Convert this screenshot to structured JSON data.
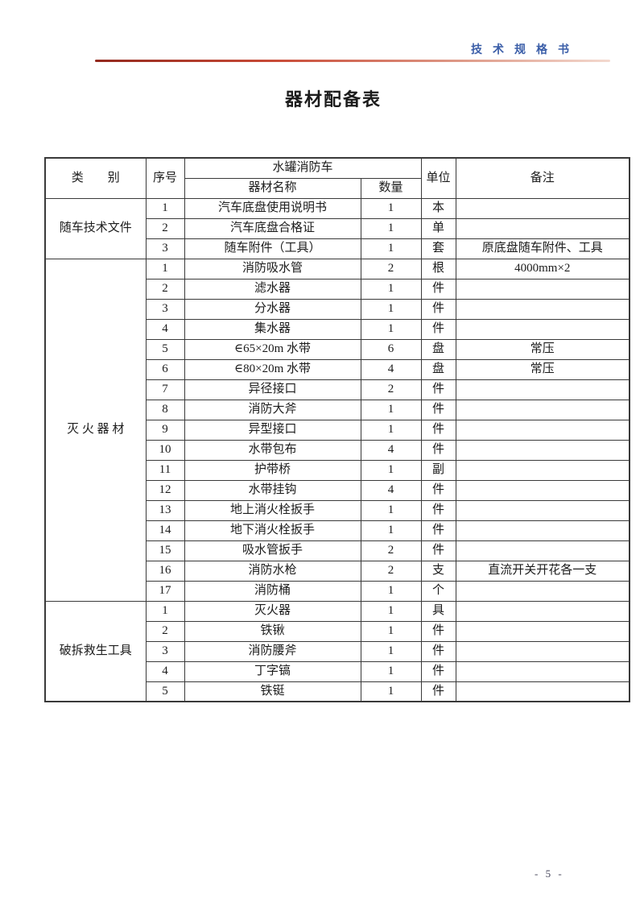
{
  "page": {
    "doc_type_label": "技术规格书",
    "title": "器材配备表",
    "page_number": "- 5 -"
  },
  "colors": {
    "doc_type_blue": "#3b5ea8",
    "rule_gradient_start": "#93291e",
    "rule_gradient_end": "#f3d9cf",
    "table_border": "#3a3a3a"
  },
  "table": {
    "headers": {
      "category": "类　　别",
      "seq": "序号",
      "vehicle": "水罐消防车",
      "name": "器材名称",
      "qty": "数量",
      "unit": "单位",
      "remark": "备注"
    },
    "groups": [
      {
        "category": "随车技术文件",
        "rows": [
          {
            "seq": "1",
            "name": "汽车底盘使用说明书",
            "qty": "1",
            "unit": "本",
            "remark": ""
          },
          {
            "seq": "2",
            "name": "汽车底盘合格证",
            "qty": "1",
            "unit": "单",
            "remark": ""
          },
          {
            "seq": "3",
            "name": "随车附件（工具）",
            "qty": "1",
            "unit": "套",
            "remark": "原底盘随车附件、工具"
          }
        ]
      },
      {
        "category": "灭 火 器 材",
        "rows": [
          {
            "seq": "1",
            "name": "消防吸水管",
            "qty": "2",
            "unit": "根",
            "remark": "4000mm×2"
          },
          {
            "seq": "2",
            "name": "滤水器",
            "qty": "1",
            "unit": "件",
            "remark": ""
          },
          {
            "seq": "3",
            "name": "分水器",
            "qty": "1",
            "unit": "件",
            "remark": ""
          },
          {
            "seq": "4",
            "name": "集水器",
            "qty": "1",
            "unit": "件",
            "remark": ""
          },
          {
            "seq": "5",
            "name": "∈65×20m 水带",
            "qty": "6",
            "unit": "盘",
            "remark": "常压"
          },
          {
            "seq": "6",
            "name": "∈80×20m 水带",
            "qty": "4",
            "unit": "盘",
            "remark": "常压"
          },
          {
            "seq": "7",
            "name": "异径接口",
            "qty": "2",
            "unit": "件",
            "remark": ""
          },
          {
            "seq": "8",
            "name": "消防大斧",
            "qty": "1",
            "unit": "件",
            "remark": ""
          },
          {
            "seq": "9",
            "name": "异型接口",
            "qty": "1",
            "unit": "件",
            "remark": ""
          },
          {
            "seq": "10",
            "name": "水带包布",
            "qty": "4",
            "unit": "件",
            "remark": ""
          },
          {
            "seq": "11",
            "name": "护带桥",
            "qty": "1",
            "unit": "副",
            "remark": ""
          },
          {
            "seq": "12",
            "name": "水带挂钩",
            "qty": "4",
            "unit": "件",
            "remark": ""
          },
          {
            "seq": "13",
            "name": "地上消火栓扳手",
            "qty": "1",
            "unit": "件",
            "remark": ""
          },
          {
            "seq": "14",
            "name": "地下消火栓扳手",
            "qty": "1",
            "unit": "件",
            "remark": ""
          },
          {
            "seq": "15",
            "name": "吸水管扳手",
            "qty": "2",
            "unit": "件",
            "remark": ""
          },
          {
            "seq": "16",
            "name": "消防水枪",
            "qty": "2",
            "unit": "支",
            "remark": "直流开关开花各一支"
          },
          {
            "seq": "17",
            "name": "消防桶",
            "qty": "1",
            "unit": "个",
            "remark": ""
          }
        ]
      },
      {
        "category": "破拆救生工具",
        "rows": [
          {
            "seq": "1",
            "name": "灭火器",
            "qty": "1",
            "unit": "具",
            "remark": ""
          },
          {
            "seq": "2",
            "name": "铁锹",
            "qty": "1",
            "unit": "件",
            "remark": ""
          },
          {
            "seq": "3",
            "name": "消防腰斧",
            "qty": "1",
            "unit": "件",
            "remark": ""
          },
          {
            "seq": "4",
            "name": "丁字镐",
            "qty": "1",
            "unit": "件",
            "remark": ""
          },
          {
            "seq": "5",
            "name": "铁铤",
            "qty": "1",
            "unit": "件",
            "remark": ""
          }
        ]
      }
    ]
  }
}
